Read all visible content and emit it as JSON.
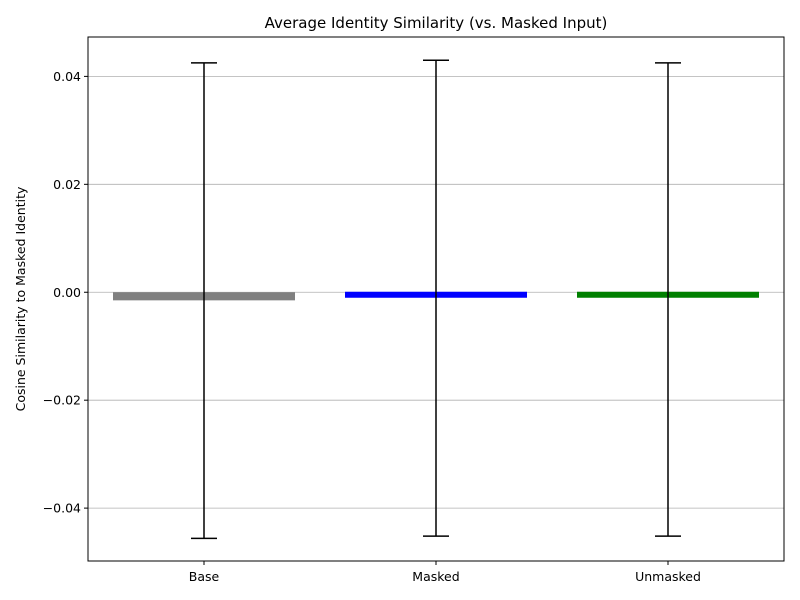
{
  "chart_data": {
    "type": "bar",
    "title": "Average Identity Similarity (vs. Masked Input)",
    "xlabel": "",
    "ylabel": "Cosine Similarity to Masked Identity",
    "categories": [
      "Base",
      "Masked",
      "Unmasked"
    ],
    "values": [
      -0.0015,
      -0.0008,
      -0.001
    ],
    "error_low": [
      -0.0456,
      -0.0452,
      -0.0452
    ],
    "error_high": [
      0.0425,
      0.043,
      0.0425
    ],
    "colors": [
      "#808080",
      "#0000ff",
      "#008000"
    ],
    "ylim": [
      -0.0498,
      0.0473
    ],
    "yticks": [
      -0.04,
      -0.02,
      0.0,
      0.02,
      0.04
    ],
    "ytick_labels": [
      "−0.04",
      "−0.02",
      "0.00",
      "0.02",
      "0.04"
    ],
    "grid": "y-major"
  }
}
